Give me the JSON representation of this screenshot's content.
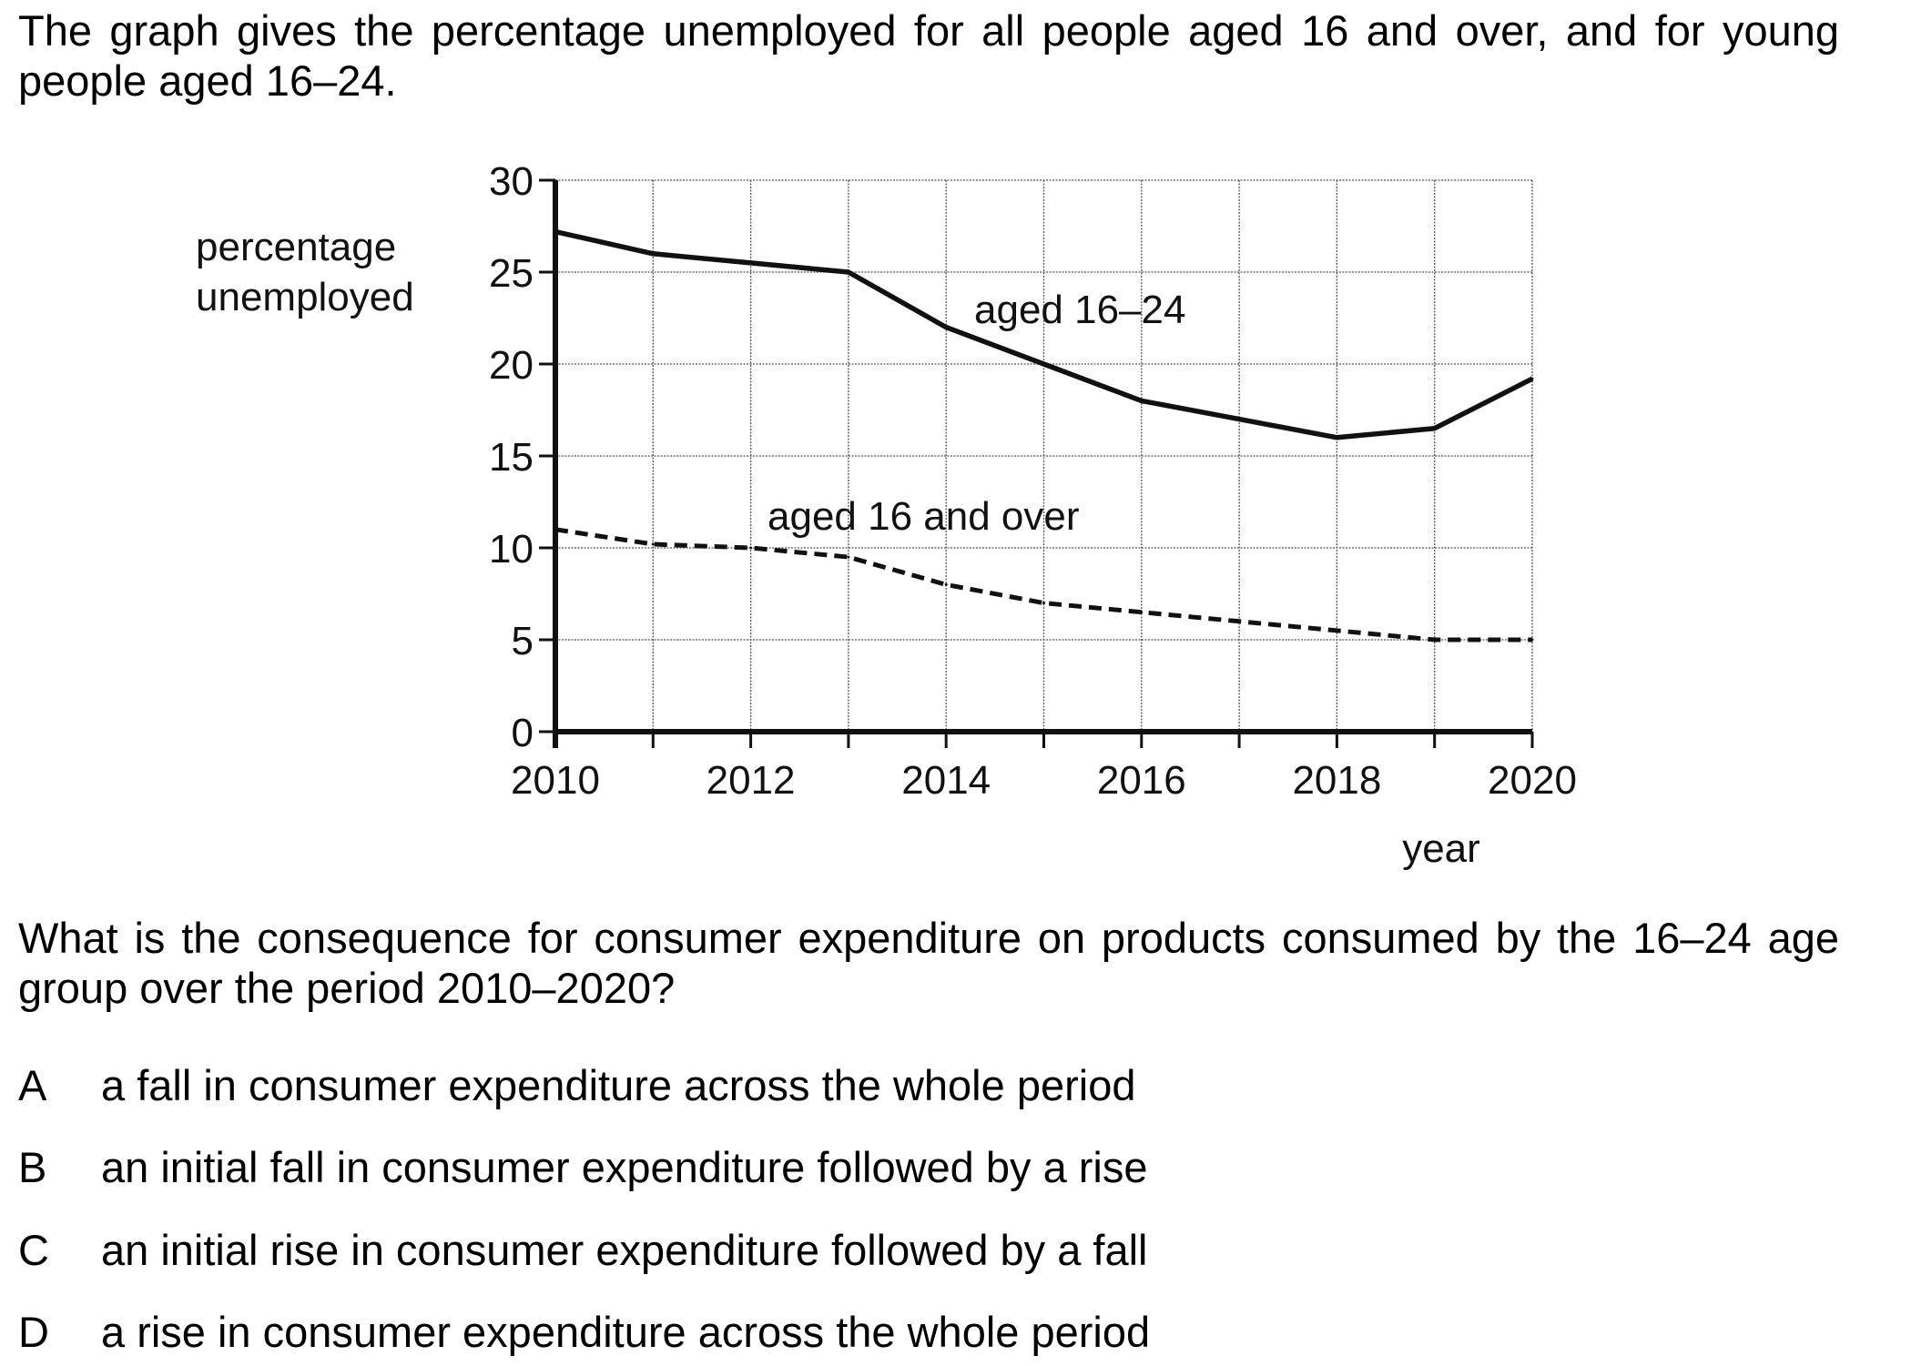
{
  "question": {
    "intro": "The graph gives the percentage unemployed for all people aged 16 and over, and for young people aged 16–24.",
    "stem": "What is the consequence for consumer expenditure on products consumed by the 16–24 age group over the period 2010–2020?",
    "options": [
      {
        "letter": "A",
        "text": "a fall in consumer expenditure across the whole period"
      },
      {
        "letter": "B",
        "text": "an initial fall in consumer expenditure followed by a rise"
      },
      {
        "letter": "C",
        "text": "an initial rise in consumer expenditure followed by a fall"
      },
      {
        "letter": "D",
        "text": "a rise in consumer expenditure across the whole period"
      }
    ]
  },
  "chart_data": {
    "type": "line",
    "title": "",
    "ylabel": [
      "percentage",
      "unemployed"
    ],
    "xlabel": "year",
    "xlim": [
      2010,
      2020
    ],
    "ylim": [
      0,
      30
    ],
    "x_ticks": [
      2010,
      2012,
      2014,
      2016,
      2018,
      2020
    ],
    "y_ticks": [
      0,
      5,
      10,
      15,
      20,
      25,
      30
    ],
    "grid": true,
    "x": [
      2010,
      2011,
      2012,
      2013,
      2014,
      2015,
      2016,
      2017,
      2018,
      2019,
      2020
    ],
    "series": [
      {
        "name": "aged 16–24",
        "line_style": "solid",
        "values": [
          27.2,
          26.0,
          25.5,
          25.0,
          22.0,
          20.0,
          18.0,
          17.0,
          16.0,
          16.5,
          19.2
        ]
      },
      {
        "name": "aged 16 and over",
        "line_style": "dashed",
        "values": [
          11.0,
          10.2,
          10.0,
          9.5,
          8.0,
          7.0,
          6.5,
          6.0,
          5.5,
          5.0,
          5.0
        ]
      }
    ]
  }
}
